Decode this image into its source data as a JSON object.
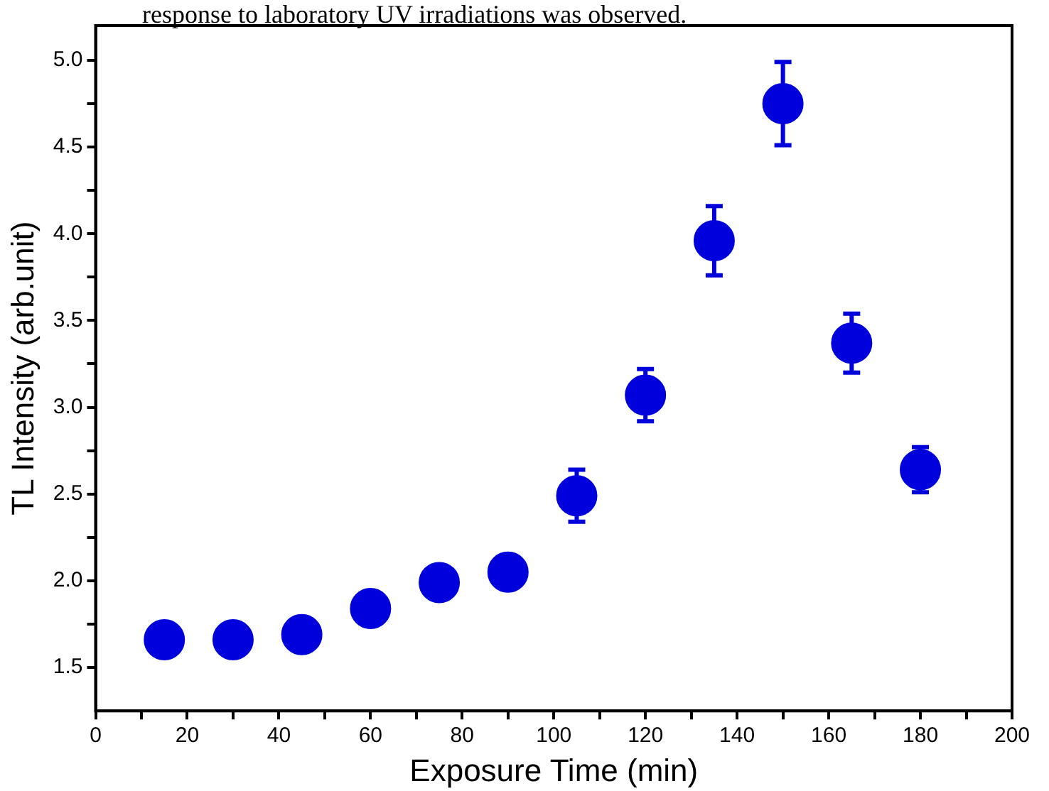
{
  "chart_data": {
    "type": "scatter",
    "xlabel": "Exposure Time (min)",
    "ylabel": "TL Intensity (arb.unit)",
    "annotations": [
      "response to laboratory UV irradiations was observed."
    ],
    "x": [
      15,
      30,
      45,
      60,
      75,
      90,
      105,
      120,
      135,
      150,
      165,
      180
    ],
    "series": [
      {
        "color": "#0000dd",
        "values": [
          1.66,
          1.66,
          1.69,
          1.84,
          1.99,
          2.05,
          2.49,
          3.07,
          3.96,
          4.75,
          3.37,
          2.64
        ],
        "errors": [
          null,
          null,
          null,
          null,
          null,
          null,
          0.15,
          0.15,
          0.2,
          0.24,
          0.17,
          0.13
        ]
      }
    ],
    "marker": "circle",
    "grid": false,
    "legend": false,
    "xlim": [
      0,
      200
    ],
    "ylim": [
      1.25,
      5.2
    ],
    "xticks": [
      0,
      {
        "value": 10,
        "label": null
      },
      20,
      {
        "value": 30,
        "label": null
      },
      40,
      {
        "value": 50,
        "label": null
      },
      60,
      {
        "value": 70,
        "label": null
      },
      80,
      {
        "value": 90,
        "label": null
      },
      100,
      {
        "value": 110,
        "label": null
      },
      120,
      {
        "value": 130,
        "label": null
      },
      140,
      {
        "value": 150,
        "label": null
      },
      160,
      {
        "value": 170,
        "label": null
      },
      180,
      {
        "value": 190,
        "label": null
      },
      200
    ],
    "yticks": [
      {
        "value": 1.5,
        "label": "1.5"
      },
      {
        "value": 1.75,
        "label": null
      },
      {
        "value": 2,
        "label": "2.0"
      },
      {
        "value": 2.25,
        "label": null
      },
      {
        "value": 2.5,
        "label": "2.5"
      },
      {
        "value": 2.75,
        "label": null
      },
      {
        "value": 3,
        "label": "3.0"
      },
      {
        "value": 3.25,
        "label": null
      },
      {
        "value": 3.5,
        "label": "3.5"
      },
      {
        "value": 3.75,
        "label": null
      },
      {
        "value": 4,
        "label": "4.0"
      },
      {
        "value": 4.25,
        "label": null
      },
      {
        "value": 4.5,
        "label": "4.5"
      },
      {
        "value": 4.75,
        "label": null
      },
      {
        "value": 5,
        "label": "5.0"
      }
    ]
  }
}
